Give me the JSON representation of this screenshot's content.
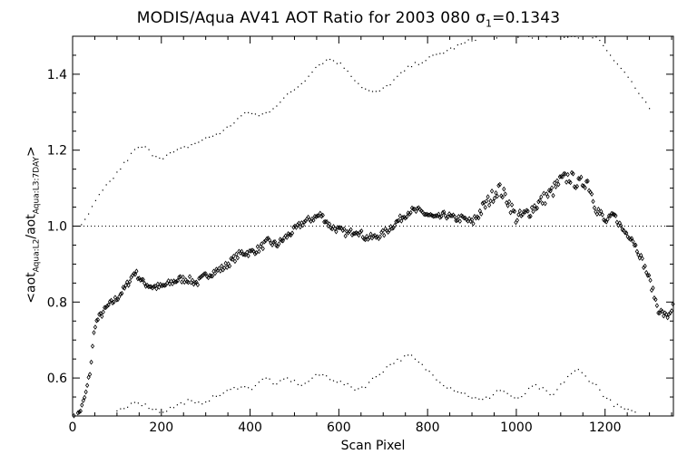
{
  "chart_data": {
    "type": "scatter",
    "title": {
      "prefix": "MODIS/Aqua AV41 AOT Ratio for 2003 080 ",
      "sigma_symbol": "σ",
      "sigma_sub": "1",
      "sigma_value": "=0.1343"
    },
    "xlabel": "Scan Pixel",
    "ylabel": {
      "prefix": "<aot",
      "sub1": "Aqua:L2",
      "mid": "/aot",
      "sub2": "Aqua:L3:7DAY",
      "suffix": ">"
    },
    "xlim": [
      0,
      1354
    ],
    "ylim": [
      0.5,
      1.5
    ],
    "x_ticks": [
      0,
      200,
      400,
      600,
      800,
      1000,
      1200
    ],
    "x_tick_labels": [
      "0",
      "200",
      "400",
      "600",
      "800",
      "1000",
      "1200"
    ],
    "y_ticks": [
      0.6,
      0.8,
      1.0,
      1.2,
      1.4
    ],
    "y_tick_labels": [
      "0.6",
      "0.8",
      "1.0",
      "1.2",
      "1.4"
    ],
    "reference_line": 1.0,
    "series": [
      {
        "marker": "diamond",
        "x": [
          0,
          10,
          20,
          30,
          40,
          50,
          60,
          80,
          100,
          120,
          140,
          160,
          180,
          200,
          220,
          240,
          260,
          280,
          300,
          320,
          340,
          360,
          380,
          400,
          420,
          440,
          460,
          480,
          500,
          520,
          540,
          560,
          580,
          600,
          620,
          640,
          660,
          680,
          700,
          720,
          740,
          760,
          780,
          800,
          820,
          840,
          860,
          880,
          900,
          920,
          940,
          960,
          980,
          1000,
          1020,
          1040,
          1060,
          1080,
          1100,
          1120,
          1140,
          1160,
          1180,
          1200,
          1220,
          1240,
          1260,
          1280,
          1300,
          1320,
          1340,
          1354
        ],
        "y": [
          0.49,
          0.5,
          0.52,
          0.56,
          0.62,
          0.74,
          0.76,
          0.79,
          0.81,
          0.84,
          0.88,
          0.85,
          0.84,
          0.84,
          0.85,
          0.86,
          0.86,
          0.85,
          0.87,
          0.88,
          0.89,
          0.91,
          0.93,
          0.93,
          0.94,
          0.96,
          0.95,
          0.97,
          0.99,
          1.01,
          1.02,
          1.03,
          1.0,
          0.99,
          0.98,
          0.99,
          0.97,
          0.97,
          0.98,
          1.0,
          1.02,
          1.04,
          1.04,
          1.03,
          1.02,
          1.03,
          1.02,
          1.02,
          1.01,
          1.04,
          1.07,
          1.1,
          1.07,
          1.02,
          1.03,
          1.05,
          1.07,
          1.09,
          1.12,
          1.13,
          1.11,
          1.12,
          1.05,
          1.01,
          1.03,
          0.99,
          0.97,
          0.92,
          0.86,
          0.78,
          0.76,
          0.79
        ]
      },
      {
        "marker": "dot",
        "x": [
          20,
          40,
          60,
          80,
          100,
          120,
          140,
          160,
          180,
          200,
          220,
          240,
          260,
          280,
          300,
          320,
          340,
          360,
          380,
          400,
          420,
          440,
          460,
          480,
          500,
          520,
          540,
          560,
          580,
          600,
          620,
          640,
          660,
          680,
          700,
          720,
          740,
          760,
          780,
          800,
          820,
          840,
          860,
          880,
          900,
          920,
          940,
          1180,
          1200,
          1220,
          1240,
          1260,
          1280,
          1300
        ],
        "y": [
          1.0,
          1.04,
          1.08,
          1.11,
          1.14,
          1.17,
          1.2,
          1.21,
          1.19,
          1.18,
          1.19,
          1.2,
          1.21,
          1.22,
          1.23,
          1.24,
          1.25,
          1.27,
          1.29,
          1.3,
          1.29,
          1.3,
          1.32,
          1.34,
          1.36,
          1.38,
          1.41,
          1.43,
          1.44,
          1.43,
          1.41,
          1.38,
          1.36,
          1.35,
          1.36,
          1.38,
          1.4,
          1.42,
          1.43,
          1.44,
          1.45,
          1.46,
          1.47,
          1.48,
          1.49,
          1.5,
          1.5,
          1.5,
          1.47,
          1.44,
          1.41,
          1.38,
          1.34,
          1.31
        ]
      },
      {
        "marker": "dot",
        "x": [
          100,
          120,
          140,
          160,
          180,
          200,
          220,
          240,
          260,
          280,
          300,
          320,
          340,
          360,
          380,
          400,
          420,
          440,
          460,
          480,
          500,
          520,
          540,
          560,
          580,
          600,
          620,
          640,
          660,
          680,
          700,
          720,
          740,
          760,
          780,
          800,
          820,
          840,
          860,
          880,
          900,
          920,
          940,
          960,
          980,
          1000,
          1020,
          1040,
          1060,
          1080,
          1100,
          1120,
          1140,
          1160,
          1180,
          1200,
          1220,
          1240,
          1260,
          1280
        ],
        "y": [
          0.51,
          0.52,
          0.54,
          0.53,
          0.52,
          0.51,
          0.52,
          0.53,
          0.54,
          0.53,
          0.54,
          0.55,
          0.56,
          0.57,
          0.58,
          0.57,
          0.59,
          0.6,
          0.58,
          0.6,
          0.59,
          0.58,
          0.6,
          0.61,
          0.6,
          0.59,
          0.58,
          0.57,
          0.58,
          0.6,
          0.62,
          0.64,
          0.65,
          0.66,
          0.64,
          0.62,
          0.6,
          0.58,
          0.57,
          0.56,
          0.55,
          0.54,
          0.55,
          0.57,
          0.56,
          0.54,
          0.56,
          0.58,
          0.57,
          0.55,
          0.58,
          0.61,
          0.62,
          0.6,
          0.58,
          0.55,
          0.53,
          0.52,
          0.51,
          0.5
        ]
      }
    ]
  }
}
